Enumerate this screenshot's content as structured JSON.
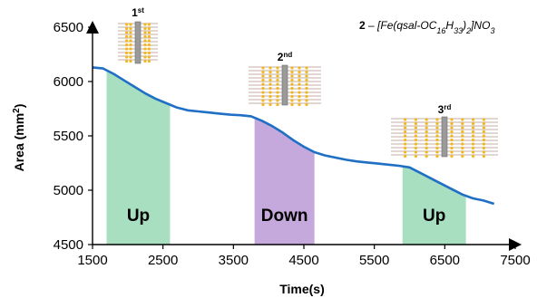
{
  "chart_data": {
    "type": "line",
    "title_parts": {
      "number": "2",
      "dash": " – ",
      "formula_pre": "[Fe(qsal-OC",
      "sub1": "16",
      "formula_mid": "H",
      "sub2": "33",
      "formula_post": ")",
      "sub3": "2",
      "formula_end": "]NO",
      "sub4": "3"
    },
    "xlabel": "Time(s)",
    "ylabel_parts": {
      "main": "Area (mm",
      "sup": "2",
      "end": ")"
    },
    "xlim": [
      1500,
      7500
    ],
    "ylim": [
      4500,
      6500
    ],
    "xticks": [
      1500,
      2500,
      3500,
      4500,
      5500,
      6500,
      7500
    ],
    "yticks": [
      4500,
      5000,
      5500,
      6000,
      6500
    ],
    "series": [
      {
        "color": "#1f6fc4",
        "x": [
          1500,
          1650,
          1800,
          1950,
          2100,
          2250,
          2400,
          2550,
          2700,
          2850,
          3000,
          3150,
          3300,
          3450,
          3600,
          3750,
          3900,
          4050,
          4200,
          4350,
          4500,
          4650,
          4800,
          4950,
          5100,
          5250,
          5400,
          5550,
          5700,
          5850,
          6000,
          6150,
          6300,
          6450,
          6600,
          6750,
          6900,
          7050,
          7200
        ],
        "y": [
          6130,
          6120,
          6070,
          6010,
          5950,
          5890,
          5840,
          5800,
          5760,
          5735,
          5725,
          5715,
          5705,
          5695,
          5690,
          5680,
          5640,
          5590,
          5530,
          5460,
          5400,
          5350,
          5320,
          5300,
          5280,
          5265,
          5255,
          5245,
          5235,
          5225,
          5210,
          5160,
          5110,
          5060,
          5010,
          4960,
          4925,
          4905,
          4875
        ]
      }
    ],
    "regions": [
      {
        "label": "Up",
        "x_start": 1700,
        "x_end": 2600,
        "color": "#a8dfc0"
      },
      {
        "label": "Down",
        "x_start": 3800,
        "x_end": 4650,
        "color": "#c6a9dc"
      },
      {
        "label": "Up",
        "x_start": 5900,
        "x_end": 6800,
        "color": "#a8dfc0"
      }
    ],
    "annotations": [
      {
        "num": "1",
        "sup": "st"
      },
      {
        "num": "2",
        "sup": "nd"
      },
      {
        "num": "3",
        "sup": "rd"
      }
    ],
    "grid": false
  },
  "colors": {
    "line": "#1f6fc4",
    "up_region": "#a8dfc0",
    "down_region": "#c6a9dc",
    "film_line": "#d9c8c4",
    "film_dot": "#f2b820",
    "film_core": "#9a9a9a"
  }
}
